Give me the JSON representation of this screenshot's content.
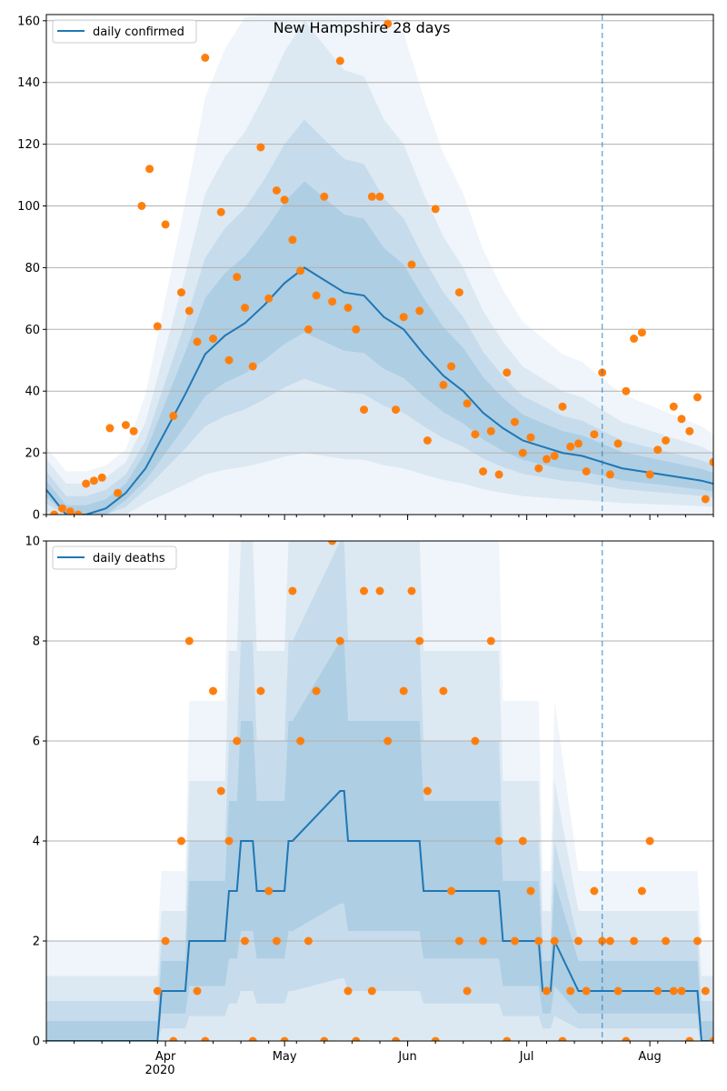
{
  "title": "New Hampshire 28 days",
  "colors": {
    "line": "#1f77b4",
    "points": "#ff7f0e",
    "band": "#1f77b4",
    "grid": "#b0b0b0"
  },
  "x_ticks": [
    {
      "date": "2020-04-01",
      "label": "Apr"
    },
    {
      "date": "2020-05-01",
      "label": "May"
    },
    {
      "date": "2020-06-01",
      "label": "Jun"
    },
    {
      "date": "2020-07-01",
      "label": "Jul"
    },
    {
      "date": "2020-08-01",
      "label": "Aug"
    }
  ],
  "x_year_label": "2020",
  "chart_data": [
    {
      "type": "line",
      "xlim": [
        "2020-03-02",
        "2020-08-17"
      ],
      "ylim": [
        0,
        162
      ],
      "yticks": [
        0,
        20,
        40,
        60,
        80,
        100,
        120,
        140,
        160
      ],
      "grid": true,
      "legend_position": "top-left",
      "forecast_start": "2020-07-20",
      "series": [
        {
          "name": "daily confirmed",
          "x": [
            "2020-03-02",
            "2020-03-07",
            "2020-03-12",
            "2020-03-17",
            "2020-03-22",
            "2020-03-27",
            "2020-04-01",
            "2020-04-06",
            "2020-04-11",
            "2020-04-16",
            "2020-04-21",
            "2020-04-26",
            "2020-05-01",
            "2020-05-06",
            "2020-05-11",
            "2020-05-16",
            "2020-05-21",
            "2020-05-26",
            "2020-05-31",
            "2020-06-05",
            "2020-06-10",
            "2020-06-15",
            "2020-06-20",
            "2020-06-25",
            "2020-06-30",
            "2020-07-05",
            "2020-07-10",
            "2020-07-15",
            "2020-07-20",
            "2020-07-25",
            "2020-07-30",
            "2020-08-04",
            "2020-08-09",
            "2020-08-14",
            "2020-08-17"
          ],
          "y": [
            8,
            0,
            0,
            2,
            7,
            15,
            27,
            39,
            52,
            58,
            62,
            68,
            75,
            80,
            76,
            72,
            71,
            64,
            60,
            52,
            45,
            40,
            33,
            28,
            24,
            22,
            20,
            19,
            17,
            15,
            14,
            13,
            12,
            11,
            10
          ]
        }
      ],
      "points": {
        "x": [
          "2020-03-04",
          "2020-03-06",
          "2020-03-08",
          "2020-03-10",
          "2020-03-12",
          "2020-03-14",
          "2020-03-16",
          "2020-03-18",
          "2020-03-20",
          "2020-03-22",
          "2020-03-24",
          "2020-03-26",
          "2020-03-28",
          "2020-03-30",
          "2020-04-01",
          "2020-04-03",
          "2020-04-05",
          "2020-04-07",
          "2020-04-09",
          "2020-04-11",
          "2020-04-13",
          "2020-04-15",
          "2020-04-17",
          "2020-04-19",
          "2020-04-21",
          "2020-04-23",
          "2020-04-25",
          "2020-04-27",
          "2020-04-29",
          "2020-05-01",
          "2020-05-03",
          "2020-05-05",
          "2020-05-07",
          "2020-05-09",
          "2020-05-11",
          "2020-05-13",
          "2020-05-15",
          "2020-05-17",
          "2020-05-19",
          "2020-05-21",
          "2020-05-23",
          "2020-05-25",
          "2020-05-27",
          "2020-05-29",
          "2020-05-31",
          "2020-06-02",
          "2020-06-04",
          "2020-06-06",
          "2020-06-08",
          "2020-06-10",
          "2020-06-12",
          "2020-06-14",
          "2020-06-16",
          "2020-06-18",
          "2020-06-20",
          "2020-06-22",
          "2020-06-24",
          "2020-06-26",
          "2020-06-28",
          "2020-06-30",
          "2020-07-02",
          "2020-07-04",
          "2020-07-06",
          "2020-07-08",
          "2020-07-10",
          "2020-07-12",
          "2020-07-14",
          "2020-07-16",
          "2020-07-18",
          "2020-07-20",
          "2020-07-22",
          "2020-07-24",
          "2020-07-26",
          "2020-07-28",
          "2020-07-30",
          "2020-08-01",
          "2020-08-03",
          "2020-08-05",
          "2020-08-07",
          "2020-08-09",
          "2020-08-11",
          "2020-08-13",
          "2020-08-15",
          "2020-08-17"
        ],
        "y": [
          0,
          2,
          1,
          0,
          10,
          11,
          12,
          28,
          7,
          29,
          27,
          100,
          112,
          61,
          94,
          32,
          72,
          66,
          56,
          148,
          57,
          98,
          50,
          77,
          67,
          48,
          119,
          70,
          105,
          102,
          89,
          79,
          60,
          71,
          103,
          69,
          147,
          67,
          60,
          34,
          103,
          103,
          159,
          34,
          64,
          81,
          66,
          24,
          99,
          42,
          48,
          72,
          36,
          26,
          14,
          27,
          13,
          46,
          30,
          20,
          25,
          15,
          18,
          19,
          35,
          22,
          23,
          14,
          26,
          46,
          13,
          23,
          40,
          57,
          59,
          13,
          21,
          24,
          35,
          31,
          27,
          38,
          5,
          17
        ]
      }
    },
    {
      "type": "line",
      "xlim": [
        "2020-03-02",
        "2020-08-17"
      ],
      "ylim": [
        0,
        10
      ],
      "yticks": [
        0,
        2,
        4,
        6,
        8,
        10
      ],
      "grid": true,
      "legend_position": "top-left",
      "forecast_start": "2020-07-20",
      "series": [
        {
          "name": "daily deaths",
          "x": [
            "2020-03-02",
            "2020-03-30",
            "2020-03-31",
            "2020-04-06",
            "2020-04-07",
            "2020-04-16",
            "2020-04-17",
            "2020-04-19",
            "2020-04-20",
            "2020-04-23",
            "2020-04-24",
            "2020-05-01",
            "2020-05-02",
            "2020-05-03",
            "2020-05-15",
            "2020-05-16",
            "2020-05-17",
            "2020-06-04",
            "2020-06-05",
            "2020-06-24",
            "2020-06-25",
            "2020-06-27",
            "2020-06-28",
            "2020-07-04",
            "2020-07-05",
            "2020-07-07",
            "2020-07-08",
            "2020-07-14",
            "2020-07-15",
            "2020-08-13",
            "2020-08-14",
            "2020-08-17"
          ],
          "y": [
            0,
            0,
            1,
            1,
            2,
            2,
            3,
            3,
            4,
            4,
            3,
            3,
            4,
            4,
            5,
            5,
            4,
            4,
            3,
            3,
            2,
            2,
            2,
            2,
            1,
            1,
            2,
            1,
            1,
            1,
            0,
            0
          ]
        }
      ],
      "points": {
        "x": [
          "2020-03-30",
          "2020-04-01",
          "2020-04-03",
          "2020-04-05",
          "2020-04-07",
          "2020-04-09",
          "2020-04-11",
          "2020-04-13",
          "2020-04-15",
          "2020-04-17",
          "2020-04-19",
          "2020-04-21",
          "2020-04-23",
          "2020-04-25",
          "2020-04-27",
          "2020-04-29",
          "2020-05-01",
          "2020-05-03",
          "2020-05-05",
          "2020-05-07",
          "2020-05-09",
          "2020-05-11",
          "2020-05-13",
          "2020-05-15",
          "2020-05-17",
          "2020-05-19",
          "2020-05-21",
          "2020-05-23",
          "2020-05-25",
          "2020-05-27",
          "2020-05-29",
          "2020-05-31",
          "2020-06-02",
          "2020-06-04",
          "2020-06-06",
          "2020-06-08",
          "2020-06-10",
          "2020-06-12",
          "2020-06-14",
          "2020-06-16",
          "2020-06-18",
          "2020-06-20",
          "2020-06-22",
          "2020-06-24",
          "2020-06-26",
          "2020-06-28",
          "2020-06-30",
          "2020-07-02",
          "2020-07-04",
          "2020-07-06",
          "2020-07-08",
          "2020-07-10",
          "2020-07-12",
          "2020-07-14",
          "2020-07-16",
          "2020-07-18",
          "2020-07-20",
          "2020-07-22",
          "2020-07-24",
          "2020-07-26",
          "2020-07-28",
          "2020-07-30",
          "2020-08-01",
          "2020-08-03",
          "2020-08-05",
          "2020-08-07",
          "2020-08-09",
          "2020-08-11",
          "2020-08-13",
          "2020-08-15",
          "2020-08-17"
        ],
        "y": [
          1,
          2,
          0,
          4,
          8,
          1,
          0,
          7,
          5,
          4,
          6,
          2,
          0,
          7,
          3,
          2,
          0,
          9,
          6,
          2,
          7,
          0,
          10,
          8,
          1,
          0,
          9,
          1,
          9,
          6,
          0,
          7,
          9,
          8,
          5,
          0,
          7,
          3,
          2,
          1,
          6,
          2,
          8,
          4,
          0,
          2,
          4,
          3,
          2,
          1,
          2,
          0,
          1,
          2,
          1,
          3,
          2,
          2,
          1,
          0,
          2,
          3,
          4,
          1,
          2,
          1,
          1,
          0,
          2,
          1,
          0
        ]
      }
    }
  ]
}
